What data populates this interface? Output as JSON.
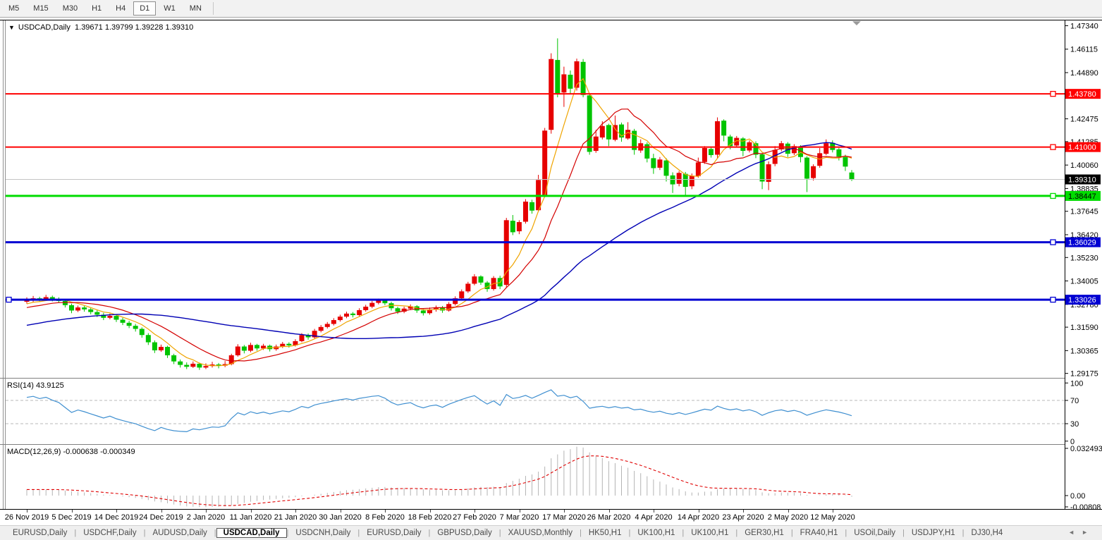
{
  "toolbar": {
    "timeframes": [
      "M5",
      "M15",
      "M30",
      "H1",
      "H4",
      "D1",
      "W1",
      "MN"
    ],
    "active_timeframe": "D1"
  },
  "chart": {
    "title": "USDCAD,Daily",
    "ohlc_text": "1.39671 1.39799 1.39228 1.39310"
  },
  "indicators": {
    "rsi": {
      "label": "RSI(14) 43.9125",
      "period": 14,
      "value": 43.9125,
      "ticks": [
        {
          "v": 100,
          "label": "100"
        },
        {
          "v": 70,
          "label": "70"
        },
        {
          "v": 30,
          "label": "30"
        },
        {
          "v": 0,
          "label": "0"
        }
      ],
      "levels": [
        70,
        30
      ],
      "line_color": "#3f8fd0"
    },
    "macd": {
      "label": "MACD(12,26,9) -0.000638 -0.000349",
      "params": "12,26,9",
      "macd_value": -0.000638,
      "signal_value": -0.000349,
      "ticks": [
        {
          "v": 0.032493,
          "label": "0.032493"
        },
        {
          "v": 0,
          "label": "0.00"
        },
        {
          "v": -0.00808,
          "label": "-0.00808"
        }
      ],
      "bar_color": "#b4b4b4",
      "signal_color": "#e00000"
    }
  },
  "chart_data": {
    "type": "candlestick",
    "symbol": "USDCAD",
    "timeframe": "Daily",
    "last_bar": {
      "open": 1.39671,
      "high": 1.39799,
      "low": 1.39228,
      "close": 1.3931
    },
    "up_color": "#e60000",
    "down_color": "#00c400",
    "price_axis_labels": [
      "1.47340",
      "1.46115",
      "1.44890",
      "1.42475",
      "1.41285",
      "1.40060",
      "1.38835",
      "1.37645",
      "1.36420",
      "1.35230",
      "1.34005",
      "1.32780",
      "1.31590",
      "1.30365",
      "1.29175"
    ],
    "date_labels": [
      "26 Nov 2019",
      "5 Dec 2019",
      "14 Dec 2019",
      "24 Dec 2019",
      "2 Jan 2020",
      "11 Jan 2020",
      "21 Jan 2020",
      "30 Jan 2020",
      "8 Feb 2020",
      "18 Feb 2020",
      "27 Feb 2020",
      "7 Mar 2020",
      "17 Mar 2020",
      "26 Mar 2020",
      "4 Apr 2020",
      "14 Apr 2020",
      "23 Apr 2020",
      "2 May 2020",
      "12 May 2020"
    ],
    "hlines": [
      {
        "price": 1.4378,
        "label": "1.43780",
        "color": "#ff0000",
        "text_color": "#ffffff",
        "width": 2,
        "left_handle": false
      },
      {
        "price": 1.41,
        "label": "1.41000",
        "color": "#ff0000",
        "text_color": "#ffffff",
        "width": 2,
        "left_handle": false
      },
      {
        "price": 1.38447,
        "label": "1.38447",
        "color": "#00dc00",
        "text_color": "#000000",
        "width": 3,
        "left_handle": false
      },
      {
        "price": 1.36029,
        "label": "1.36029",
        "color": "#0000d2",
        "text_color": "#ffffff",
        "width": 3,
        "left_handle": false
      },
      {
        "price": 1.33026,
        "label": "1.33026",
        "color": "#0000d2",
        "text_color": "#ffffff",
        "width": 3,
        "left_handle": true
      }
    ],
    "current_price": {
      "value": 1.3931,
      "label": "1.39310",
      "line_color": "#c4c4c4",
      "tag_bg": "#000000",
      "tag_text": "#ffffff"
    },
    "overlays": [
      {
        "name": "ma-fast",
        "period": 6,
        "color": "#efa400"
      },
      {
        "name": "ma-mid",
        "period": 13,
        "color": "#d40000"
      },
      {
        "name": "ma-slow",
        "period": 45,
        "color": "#0000b4"
      }
    ],
    "candles": [
      [
        1.3292,
        1.3315,
        1.3282,
        1.3298
      ],
      [
        1.3298,
        1.3322,
        1.329,
        1.331
      ],
      [
        1.331,
        1.3318,
        1.3294,
        1.3302
      ],
      [
        1.3302,
        1.3328,
        1.3296,
        1.3316
      ],
      [
        1.3316,
        1.3324,
        1.3294,
        1.3305
      ],
      [
        1.3305,
        1.3315,
        1.3286,
        1.3296
      ],
      [
        1.3296,
        1.3302,
        1.3262,
        1.3274
      ],
      [
        1.3274,
        1.3282,
        1.3232,
        1.3246
      ],
      [
        1.3246,
        1.3272,
        1.3238,
        1.3262
      ],
      [
        1.3262,
        1.327,
        1.324,
        1.3252
      ],
      [
        1.3252,
        1.326,
        1.3226,
        1.3238
      ],
      [
        1.3238,
        1.3248,
        1.3212,
        1.3224
      ],
      [
        1.3224,
        1.3234,
        1.3196,
        1.3208
      ],
      [
        1.3208,
        1.323,
        1.32,
        1.3218
      ],
      [
        1.3218,
        1.3226,
        1.3186,
        1.3198
      ],
      [
        1.3198,
        1.3208,
        1.317,
        1.3182
      ],
      [
        1.3182,
        1.3192,
        1.3154,
        1.3166
      ],
      [
        1.3166,
        1.3176,
        1.3136,
        1.315
      ],
      [
        1.315,
        1.3158,
        1.3104,
        1.3118
      ],
      [
        1.3118,
        1.3128,
        1.3066,
        1.308
      ],
      [
        1.308,
        1.309,
        1.3024,
        1.3038
      ],
      [
        1.3038,
        1.3068,
        1.303,
        1.3056
      ],
      [
        1.3056,
        1.3062,
        1.2998,
        1.3012
      ],
      [
        1.3012,
        1.302,
        1.2966,
        1.298
      ],
      [
        1.298,
        1.299,
        1.2948,
        1.2962
      ],
      [
        1.2962,
        1.2975,
        1.294,
        1.2952
      ],
      [
        1.2952,
        1.298,
        1.2946,
        1.2968
      ],
      [
        1.2968,
        1.2974,
        1.2936,
        1.2948
      ],
      [
        1.2948,
        1.297,
        1.294,
        1.2956
      ],
      [
        1.2956,
        1.2978,
        1.2948,
        1.2964
      ],
      [
        1.2964,
        1.2972,
        1.2944,
        1.2958
      ],
      [
        1.2958,
        1.2982,
        1.295,
        1.2966
      ],
      [
        1.2966,
        1.302,
        1.296,
        1.3012
      ],
      [
        1.3012,
        1.307,
        1.3005,
        1.3058
      ],
      [
        1.3058,
        1.3066,
        1.3022,
        1.3036
      ],
      [
        1.3036,
        1.3078,
        1.3028,
        1.3066
      ],
      [
        1.3066,
        1.3072,
        1.3036,
        1.3048
      ],
      [
        1.3048,
        1.3072,
        1.304,
        1.3062
      ],
      [
        1.3062,
        1.3068,
        1.3032,
        1.3044
      ],
      [
        1.3044,
        1.3068,
        1.3036,
        1.3058
      ],
      [
        1.3058,
        1.3082,
        1.305,
        1.3072
      ],
      [
        1.3072,
        1.308,
        1.3052,
        1.3064
      ],
      [
        1.3064,
        1.3096,
        1.3058,
        1.3086
      ],
      [
        1.3086,
        1.3128,
        1.308,
        1.3118
      ],
      [
        1.3118,
        1.3126,
        1.3094,
        1.3106
      ],
      [
        1.3106,
        1.315,
        1.31,
        1.314
      ],
      [
        1.314,
        1.317,
        1.3132,
        1.316
      ],
      [
        1.316,
        1.3186,
        1.3152,
        1.3176
      ],
      [
        1.3176,
        1.3206,
        1.3168,
        1.3196
      ],
      [
        1.3196,
        1.3224,
        1.3188,
        1.3214
      ],
      [
        1.3214,
        1.324,
        1.3206,
        1.323
      ],
      [
        1.323,
        1.3238,
        1.321,
        1.3222
      ],
      [
        1.3222,
        1.3258,
        1.3214,
        1.3248
      ],
      [
        1.3248,
        1.3276,
        1.324,
        1.3266
      ],
      [
        1.3266,
        1.3296,
        1.3258,
        1.3286
      ],
      [
        1.3286,
        1.3308,
        1.3278,
        1.3298
      ],
      [
        1.3298,
        1.3306,
        1.3274,
        1.3284
      ],
      [
        1.3284,
        1.3292,
        1.3246,
        1.3258
      ],
      [
        1.3258,
        1.3266,
        1.3228,
        1.324
      ],
      [
        1.324,
        1.3266,
        1.3232,
        1.3256
      ],
      [
        1.3256,
        1.3278,
        1.3248,
        1.3268
      ],
      [
        1.3268,
        1.3274,
        1.3234,
        1.3246
      ],
      [
        1.3246,
        1.3254,
        1.322,
        1.3232
      ],
      [
        1.3232,
        1.3262,
        1.3224,
        1.3252
      ],
      [
        1.3252,
        1.3272,
        1.324,
        1.3262
      ],
      [
        1.3262,
        1.327,
        1.3234,
        1.3246
      ],
      [
        1.3246,
        1.329,
        1.324,
        1.328
      ],
      [
        1.328,
        1.332,
        1.3272,
        1.331
      ],
      [
        1.331,
        1.3356,
        1.3302,
        1.3346
      ],
      [
        1.3346,
        1.3396,
        1.3338,
        1.3386
      ],
      [
        1.3386,
        1.3436,
        1.3378,
        1.3424
      ],
      [
        1.3424,
        1.343,
        1.338,
        1.3392
      ],
      [
        1.3392,
        1.34,
        1.3344,
        1.3358
      ],
      [
        1.3358,
        1.3426,
        1.335,
        1.3416
      ],
      [
        1.3416,
        1.3428,
        1.3358,
        1.3372
      ],
      [
        1.338,
        1.373,
        1.3365,
        1.3718
      ],
      [
        1.3715,
        1.3745,
        1.364,
        1.3655
      ],
      [
        1.366,
        1.3718,
        1.3645,
        1.3708
      ],
      [
        1.371,
        1.3828,
        1.37,
        1.3815
      ],
      [
        1.3812,
        1.3825,
        1.3752,
        1.3768
      ],
      [
        1.377,
        1.3955,
        1.3762,
        1.3928
      ],
      [
        1.3845,
        1.42,
        1.3838,
        1.4186
      ],
      [
        1.419,
        1.459,
        1.417,
        1.456
      ],
      [
        1.4555,
        1.4668,
        1.436,
        1.438
      ],
      [
        1.4385,
        1.452,
        1.431,
        1.448
      ],
      [
        1.4478,
        1.45,
        1.438,
        1.4405
      ],
      [
        1.441,
        1.4562,
        1.4395,
        1.4548
      ],
      [
        1.4545,
        1.456,
        1.436,
        1.4372
      ],
      [
        1.437,
        1.438,
        1.406,
        1.4075
      ],
      [
        1.408,
        1.419,
        1.407,
        1.4155
      ],
      [
        1.415,
        1.4235,
        1.414,
        1.421
      ],
      [
        1.4215,
        1.4222,
        1.4105,
        1.414
      ],
      [
        1.4138,
        1.4265,
        1.413,
        1.4215
      ],
      [
        1.4218,
        1.4228,
        1.4128,
        1.415
      ],
      [
        1.4145,
        1.423,
        1.4138,
        1.419
      ],
      [
        1.4185,
        1.4195,
        1.406,
        1.4085
      ],
      [
        1.4082,
        1.414,
        1.407,
        1.412
      ],
      [
        1.4115,
        1.4125,
        1.402,
        1.404
      ],
      [
        1.4042,
        1.4065,
        1.396,
        1.399
      ],
      [
        1.3992,
        1.4048,
        1.398,
        1.4035
      ],
      [
        1.403,
        1.4042,
        1.392,
        1.395
      ],
      [
        1.3952,
        1.3968,
        1.386,
        1.3905
      ],
      [
        1.3908,
        1.3975,
        1.3895,
        1.3965
      ],
      [
        1.396,
        1.397,
        1.3845,
        1.3892
      ],
      [
        1.3895,
        1.3962,
        1.388,
        1.395
      ],
      [
        1.3948,
        1.4045,
        1.394,
        1.402
      ],
      [
        1.4022,
        1.4105,
        1.4012,
        1.4095
      ],
      [
        1.409,
        1.4098,
        1.4045,
        1.4058
      ],
      [
        1.406,
        1.4255,
        1.404,
        1.4235
      ],
      [
        1.4238,
        1.4245,
        1.413,
        1.416
      ],
      [
        1.4155,
        1.4165,
        1.4088,
        1.4105
      ],
      [
        1.4108,
        1.4158,
        1.4098,
        1.4148
      ],
      [
        1.4145,
        1.4152,
        1.4052,
        1.408
      ],
      [
        1.4082,
        1.4135,
        1.4072,
        1.4125
      ],
      [
        1.412,
        1.413,
        1.4042,
        1.406
      ],
      [
        1.4062,
        1.407,
        1.388,
        1.392
      ],
      [
        1.3918,
        1.4025,
        1.3875,
        1.401
      ],
      [
        1.4012,
        1.4105,
        1.4,
        1.4085
      ],
      [
        1.4088,
        1.4132,
        1.4078,
        1.412
      ],
      [
        1.4118,
        1.4126,
        1.4048,
        1.4065
      ],
      [
        1.4068,
        1.4115,
        1.4058,
        1.4105
      ],
      [
        1.4102,
        1.411,
        1.402,
        1.4048
      ],
      [
        1.4045,
        1.4052,
        1.3865,
        1.3935
      ],
      [
        1.3938,
        1.401,
        1.3925,
        1.4
      ],
      [
        1.4002,
        1.4095,
        1.3992,
        1.4068
      ],
      [
        1.4065,
        1.414,
        1.4058,
        1.412
      ],
      [
        1.4122,
        1.4135,
        1.4072,
        1.4085
      ],
      [
        1.4088,
        1.4096,
        1.403,
        1.405
      ],
      [
        1.4048,
        1.406,
        1.3975,
        1.3998
      ],
      [
        1.39671,
        1.39799,
        1.39228,
        1.3931
      ]
    ]
  },
  "tabs": {
    "items": [
      "EURUSD,Daily",
      "USDCHF,Daily",
      "AUDUSD,Daily",
      "USDCAD,Daily",
      "USDCNH,Daily",
      "EURUSD,Daily",
      "GBPUSD,Daily",
      "XAUUSD,Monthly",
      "HK50,H1",
      "UK100,H1",
      "UK100,H1",
      "GER30,H1",
      "FRA40,H1",
      "USOil,Daily",
      "USDJPY,H1",
      "DJ30,H4"
    ],
    "active_index": 3,
    "left_arrow": "◄",
    "right_arrow": "►"
  }
}
